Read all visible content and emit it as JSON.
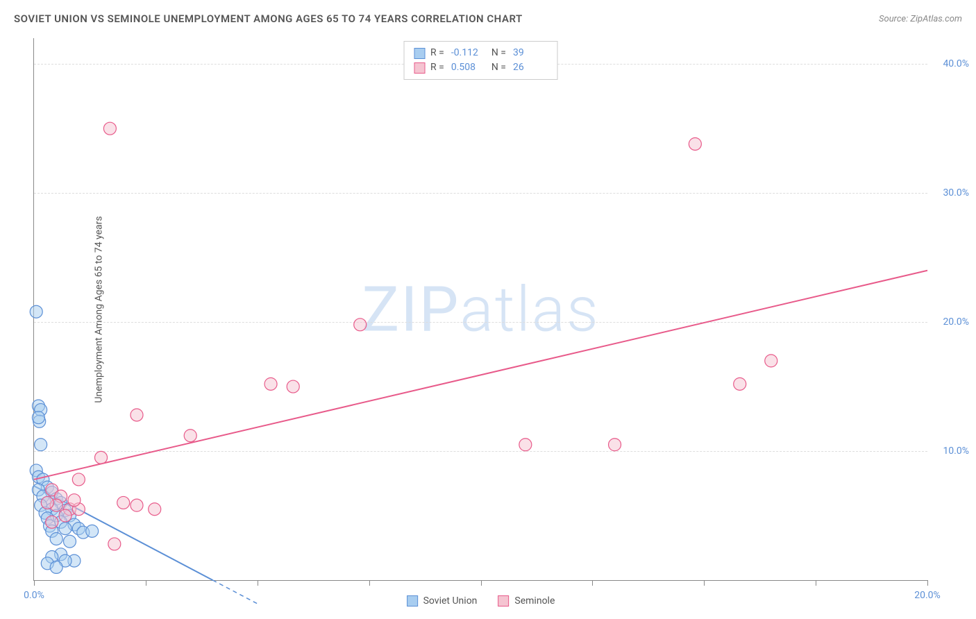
{
  "title": "SOVIET UNION VS SEMINOLE UNEMPLOYMENT AMONG AGES 65 TO 74 YEARS CORRELATION CHART",
  "source": "Source: ZipAtlas.com",
  "y_axis_label": "Unemployment Among Ages 65 to 74 years",
  "watermark": "ZIPatlas",
  "chart": {
    "type": "scatter",
    "background_color": "#ffffff",
    "grid_color": "#dddddd",
    "axis_color": "#888888",
    "tick_label_color": "#5b8fd6",
    "xlim": [
      0,
      20
    ],
    "ylim": [
      0,
      42
    ],
    "xticks": [
      0,
      2.5,
      5,
      7.5,
      10,
      12.5,
      15,
      17.5,
      20
    ],
    "xtick_labels": {
      "0": "0.0%",
      "20": "20.0%"
    },
    "yticks": [
      10,
      20,
      30,
      40
    ],
    "ytick_labels": {
      "10": "10.0%",
      "20": "20.0%",
      "30": "30.0%",
      "40": "40.0%"
    },
    "marker_radius": 9,
    "marker_opacity": 0.5,
    "line_width": 2
  },
  "series": [
    {
      "name": "Soviet Union",
      "color_fill": "#a8cdf0",
      "color_stroke": "#5b8fd6",
      "R": "-0.112",
      "N": "39",
      "trend": {
        "x1": 0,
        "y1": 7.3,
        "x2": 4.0,
        "y2": 0,
        "dashed_extension": true
      },
      "points": [
        [
          0.05,
          20.8
        ],
        [
          0.1,
          13.5
        ],
        [
          0.15,
          13.2
        ],
        [
          0.12,
          12.3
        ],
        [
          0.1,
          12.6
        ],
        [
          0.15,
          10.5
        ],
        [
          0.05,
          8.5
        ],
        [
          0.1,
          8.0
        ],
        [
          0.2,
          7.8
        ],
        [
          0.3,
          7.2
        ],
        [
          0.1,
          7.0
        ],
        [
          0.4,
          6.8
        ],
        [
          0.2,
          6.5
        ],
        [
          0.5,
          6.3
        ],
        [
          0.3,
          6.0
        ],
        [
          0.6,
          6.0
        ],
        [
          0.15,
          5.8
        ],
        [
          0.4,
          5.5
        ],
        [
          0.7,
          5.4
        ],
        [
          0.25,
          5.2
        ],
        [
          0.5,
          5.0
        ],
        [
          0.8,
          5.0
        ],
        [
          0.3,
          4.8
        ],
        [
          0.6,
          4.5
        ],
        [
          0.9,
          4.3
        ],
        [
          0.35,
          4.2
        ],
        [
          0.7,
          4.0
        ],
        [
          1.0,
          4.0
        ],
        [
          0.4,
          3.8
        ],
        [
          1.1,
          3.7
        ],
        [
          1.3,
          3.8
        ],
        [
          0.5,
          3.2
        ],
        [
          0.8,
          3.0
        ],
        [
          0.6,
          2.0
        ],
        [
          0.4,
          1.8
        ],
        [
          0.9,
          1.5
        ],
        [
          0.3,
          1.3
        ],
        [
          0.7,
          1.5
        ],
        [
          0.5,
          1.0
        ]
      ]
    },
    {
      "name": "Seminole",
      "color_fill": "#f5c4d1",
      "color_stroke": "#e85a8a",
      "R": "0.508",
      "N": "26",
      "trend": {
        "x1": 0,
        "y1": 7.8,
        "x2": 20,
        "y2": 24.0,
        "dashed_extension": false
      },
      "points": [
        [
          1.7,
          35.0
        ],
        [
          14.8,
          33.8
        ],
        [
          7.3,
          19.8
        ],
        [
          16.5,
          17.0
        ],
        [
          15.8,
          15.2
        ],
        [
          5.3,
          15.2
        ],
        [
          5.8,
          15.0
        ],
        [
          2.3,
          12.8
        ],
        [
          3.5,
          11.2
        ],
        [
          13.0,
          10.5
        ],
        [
          11.0,
          10.5
        ],
        [
          1.5,
          9.5
        ],
        [
          1.0,
          7.8
        ],
        [
          0.4,
          7.0
        ],
        [
          0.6,
          6.5
        ],
        [
          2.0,
          6.0
        ],
        [
          2.3,
          5.8
        ],
        [
          2.7,
          5.5
        ],
        [
          0.8,
          5.5
        ],
        [
          0.5,
          5.8
        ],
        [
          0.3,
          6.0
        ],
        [
          0.7,
          5.0
        ],
        [
          1.0,
          5.5
        ],
        [
          0.4,
          4.5
        ],
        [
          1.8,
          2.8
        ],
        [
          0.9,
          6.2
        ]
      ]
    }
  ],
  "stats_labels": {
    "R": "R =",
    "N": "N ="
  },
  "legend_labels": [
    "Soviet Union",
    "Seminole"
  ]
}
